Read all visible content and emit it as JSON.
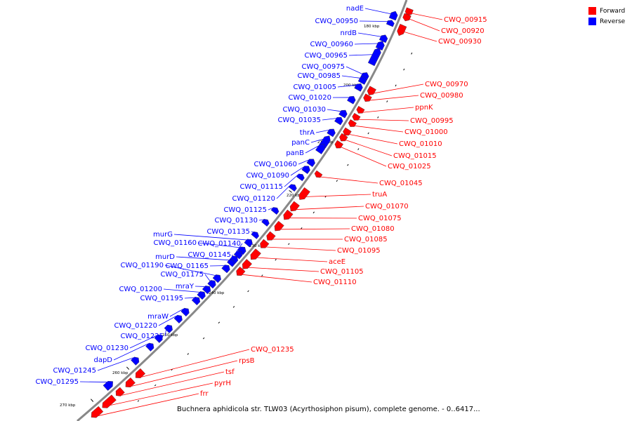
{
  "legend": {
    "items": [
      {
        "label": "Forward",
        "color": "#ff0000"
      },
      {
        "label": "Reverse",
        "color": "#0000ff"
      }
    ]
  },
  "caption": "Buchnera aphidicola str. TLW03 (Acyrthosiphon pisum), complete genome. - 0..6417...",
  "colors": {
    "forward": "#ff0000",
    "reverse": "#0000ff",
    "backbone": "#888888"
  },
  "map": {
    "tick_labels": [
      "180 kbp",
      "200 kbp",
      "210 kbp",
      "220 kbp",
      "230 kbp",
      "240 kbp",
      "250 kbp",
      "260 kbp",
      "270 kbp"
    ],
    "forward_genes": [
      "CWQ_00915",
      "CWQ_00920",
      "CWQ_00930",
      "CWQ_00970",
      "CWQ_00980",
      "ppnK",
      "CWQ_00995",
      "CWQ_01000",
      "CWQ_01010",
      "CWQ_01015",
      "CWQ_01025",
      "CWQ_01045",
      "truA",
      "CWQ_01070",
      "CWQ_01075",
      "CWQ_01080",
      "CWQ_01085",
      "CWQ_01095",
      "aceE",
      "CWQ_01105",
      "CWQ_01110",
      "CWQ_01235",
      "rpsB",
      "tsf",
      "pyrH",
      "frr"
    ],
    "reverse_genes": [
      "nadE",
      "CWQ_00950",
      "nrdB",
      "CWQ_00960",
      "CWQ_00965",
      "CWQ_00975",
      "CWQ_00985",
      "CWQ_01005",
      "CWQ_01020",
      "CWQ_01030",
      "CWQ_01035",
      "thrA",
      "panC",
      "panB",
      "CWQ_01060",
      "CWQ_01090",
      "CWQ_01115",
      "CWQ_01120",
      "CWQ_01125",
      "CWQ_01130",
      "CWQ_01135",
      "murG",
      "CWQ_01160",
      "CWQ_01140",
      "CWQ_01145",
      "murD",
      "CWQ_01165",
      "CWQ_01190",
      "CWQ_01175",
      "mraY",
      "CWQ_01200",
      "CWQ_01195",
      "mraW",
      "CWQ_01220",
      "CWQ_01225",
      "CWQ_01230",
      "dapD",
      "CWQ_01245",
      "CWQ_01295"
    ]
  }
}
